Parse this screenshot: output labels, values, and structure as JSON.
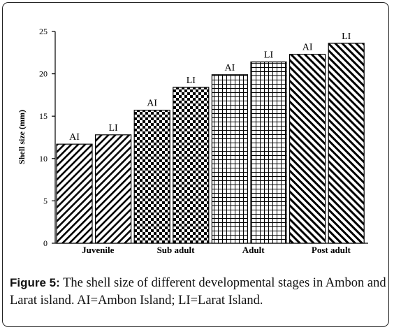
{
  "chart_data": {
    "type": "bar",
    "ylabel": "Shell size (mm)",
    "xlabel": "",
    "ylim": [
      0,
      25
    ],
    "yticks": [
      0,
      5,
      10,
      15,
      20,
      25
    ],
    "grid": false,
    "legend": "none",
    "categories": [
      "Juvenile",
      "Sub adult",
      "Adult",
      "Post adult"
    ],
    "series": [
      {
        "name": "AI",
        "pattern": "diagonal-lines",
        "values": [
          11.7,
          15.7,
          19.9,
          22.3
        ]
      },
      {
        "name": "LI",
        "pattern": "diagonal-lines",
        "values": [
          12.8,
          18.4,
          21.4,
          23.6
        ]
      }
    ],
    "bar_patterns": [
      "diagonal-lines",
      "checkerboard",
      "grid",
      "diagonal-lines-dense"
    ],
    "colors": {
      "bars": "#000000",
      "background": "#ffffff"
    }
  },
  "caption": {
    "label": "Figure 5:",
    "text": " The shell size of different developmental stages in Ambon and Larat island. AI=Ambon Island; LI=Larat Island."
  }
}
